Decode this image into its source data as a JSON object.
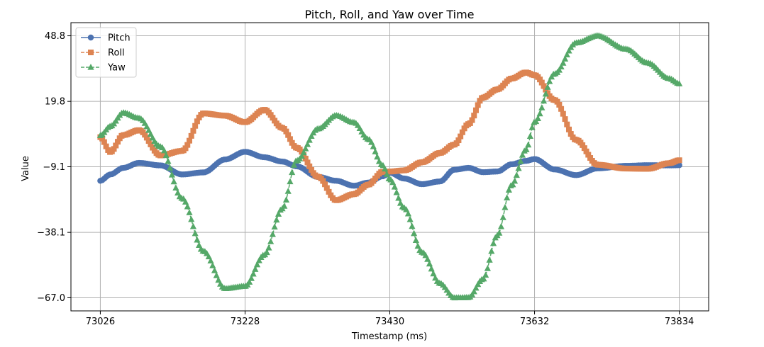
{
  "chart_data": {
    "type": "line",
    "title": "Pitch, Roll, and Yaw over Time",
    "xlabel": "Timestamp (ms)",
    "ylabel": "Value",
    "xlim": [
      72985,
      73875
    ],
    "ylim": [
      -72.8,
      54.6
    ],
    "x_ticks": [
      73026,
      73228,
      73430,
      73632,
      73834
    ],
    "x_tick_labels": [
      "73026",
      "73228",
      "73430",
      "73632",
      "73834"
    ],
    "y_ticks": [
      48.8,
      19.8,
      -9.1,
      -38.1,
      -67.0
    ],
    "y_tick_labels": [
      "48.8",
      "19.8",
      "−9.1",
      "−38.1",
      "−67.0"
    ],
    "grid": true,
    "legend_position": "top-left",
    "x_keypoints": [
      73026,
      73040,
      73058,
      73080,
      73110,
      73140,
      73170,
      73200,
      73228,
      73255,
      73280,
      73300,
      73330,
      73355,
      73380,
      73400,
      73420,
      73430,
      73450,
      73475,
      73500,
      73520,
      73540,
      73560,
      73580,
      73600,
      73620,
      73632,
      73660,
      73690,
      73720,
      73760,
      73790,
      73820,
      73834
    ],
    "series": [
      {
        "name": "Pitch",
        "color": "#4c72b0",
        "marker": "circle",
        "values": [
          -15.3,
          -12.5,
          -9.6,
          -7.4,
          -8.5,
          -12.5,
          -11.6,
          -5.9,
          -2.5,
          -4.9,
          -6.8,
          -8.9,
          -13.6,
          -15.3,
          -17.5,
          -16.1,
          -13.3,
          -11.7,
          -14.3,
          -16.8,
          -15.6,
          -10.4,
          -9.6,
          -11.5,
          -11.2,
          -8.0,
          -6.5,
          -5.7,
          -10.3,
          -12.8,
          -9.8,
          -8.7,
          -8.4,
          -8.5,
          -8.4
        ]
      },
      {
        "name": "Roll",
        "color": "#dd8452",
        "marker": "square",
        "values": [
          4.0,
          -2.6,
          4.9,
          7.1,
          -4.1,
          -2.1,
          14.5,
          13.5,
          10.6,
          16.1,
          8.1,
          -0.7,
          -13.5,
          -23.9,
          -21.2,
          -17.0,
          -11.3,
          -11.2,
          -10.7,
          -7.1,
          -3.0,
          0.7,
          9.8,
          21.5,
          25.1,
          29.9,
          32.6,
          31.4,
          20.4,
          2.8,
          -8.2,
          -9.9,
          -10.0,
          -7.5,
          -6.2
        ]
      },
      {
        "name": "Yaw",
        "color": "#55a868",
        "marker": "triangle",
        "values": [
          4.7,
          8.8,
          14.8,
          12.4,
          -0.2,
          -23.0,
          -46.4,
          -62.9,
          -61.9,
          -48.0,
          -27.6,
          -6.4,
          7.7,
          13.6,
          10.5,
          3.1,
          -8.5,
          -14.7,
          -27.3,
          -46.9,
          -60.6,
          -67.0,
          -66.9,
          -58.8,
          -39.5,
          -17.3,
          -1.6,
          10.6,
          32.0,
          45.7,
          48.8,
          42.9,
          36.8,
          29.9,
          27.6
        ]
      }
    ]
  }
}
